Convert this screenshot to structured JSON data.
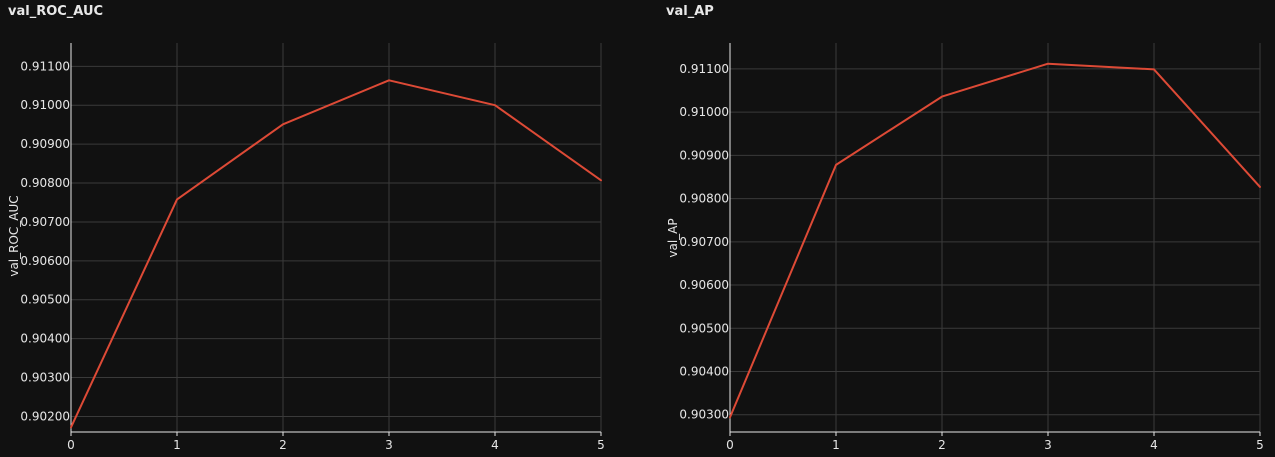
{
  "chart_data": [
    {
      "type": "line",
      "title": "val_ROC_AUC",
      "xlabel": "",
      "ylabel": "val_ROC_AUC",
      "x": [
        0,
        1,
        2,
        3,
        4,
        5
      ],
      "series": [
        {
          "values": [
            0.90172,
            0.90758,
            0.90951,
            0.91064,
            0.91,
            0.90807
          ]
        }
      ],
      "xlim": [
        0,
        5
      ],
      "ylim": [
        0.9016,
        0.9116
      ],
      "xticks": [
        0,
        1,
        2,
        3,
        4,
        5
      ],
      "yticks": [
        0.902,
        0.903,
        0.904,
        0.905,
        0.906,
        0.907,
        0.908,
        0.909,
        0.91,
        0.911
      ],
      "ytick_labels": [
        "0.90200",
        "0.90300",
        "0.90400",
        "0.90500",
        "0.90600",
        "0.90700",
        "0.90800",
        "0.90900",
        "0.91000",
        "0.91100"
      ],
      "grid": true,
      "line_color": "#dd4a36",
      "background": "#111111",
      "grid_color": "#3a3a3a"
    },
    {
      "type": "line",
      "title": "val_AP",
      "xlabel": "",
      "ylabel": "val_AP",
      "x": [
        0,
        1,
        2,
        3,
        4,
        5
      ],
      "series": [
        {
          "values": [
            0.90294,
            0.90878,
            0.91036,
            0.91112,
            0.91099,
            0.90827
          ]
        }
      ],
      "xlim": [
        0,
        5
      ],
      "ylim": [
        0.9026,
        0.9116
      ],
      "xticks": [
        0,
        1,
        2,
        3,
        4,
        5
      ],
      "yticks": [
        0.903,
        0.904,
        0.905,
        0.906,
        0.907,
        0.908,
        0.909,
        0.91,
        0.911
      ],
      "ytick_labels": [
        "0.90300",
        "0.90400",
        "0.90500",
        "0.90600",
        "0.90700",
        "0.90800",
        "0.90900",
        "0.91000",
        "0.91100"
      ],
      "grid": true,
      "line_color": "#dd4a36",
      "background": "#111111",
      "grid_color": "#3a3a3a"
    }
  ]
}
